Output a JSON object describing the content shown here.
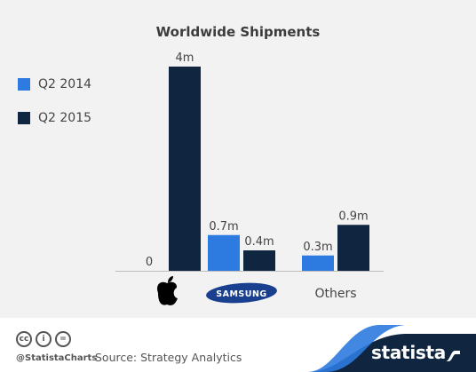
{
  "chart_data": {
    "type": "bar",
    "title": "Worldwide Shipments",
    "categories": [
      "Apple",
      "Samsung",
      "Others"
    ],
    "category_labels": [
      "",
      "SAMSUNG",
      "Others"
    ],
    "category_icons": [
      "apple-logo",
      "samsung-logo",
      ""
    ],
    "series": [
      {
        "name": "Q2 2014",
        "values": [
          0,
          0.7,
          0.3
        ],
        "labels": [
          "0",
          "0.7m",
          "0.3m"
        ],
        "color": "#2d7be0"
      },
      {
        "name": "Q2 2015",
        "values": [
          4,
          0.4,
          0.9
        ],
        "labels": [
          "4m",
          "0.4m",
          "0.9m"
        ],
        "color": "#0f2540"
      }
    ],
    "ylim": [
      0,
      4
    ],
    "legend_position": "top-left",
    "grid": false
  },
  "footer": {
    "handle": "@StatistaCharts",
    "source": "Source: Strategy Analytics",
    "brand": "statista",
    "license_icons": [
      "cc-icon",
      "by-icon",
      "nd-icon"
    ]
  }
}
